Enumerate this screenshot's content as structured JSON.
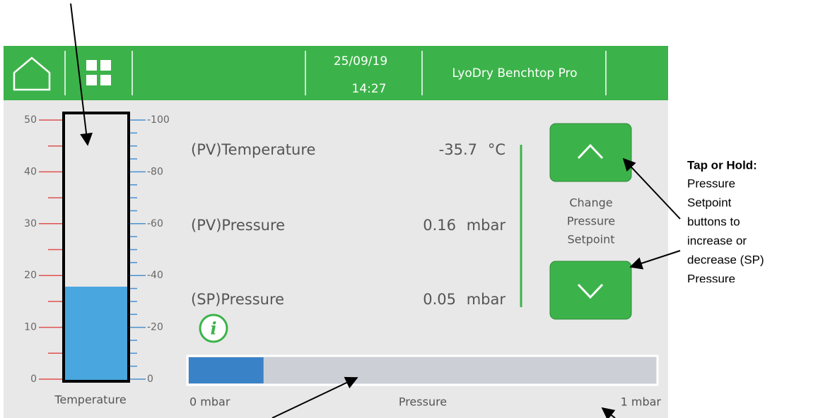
{
  "header": {
    "date": "25/09/19",
    "time": "14:27",
    "title": "LyoDry Benchtop Pro"
  },
  "thermometer": {
    "label": "Temperature",
    "left_range": [
      0,
      50
    ],
    "left_ticks": [
      0,
      10,
      20,
      30,
      40,
      50
    ],
    "right_range": [
      0,
      -100
    ],
    "right_ticks": [
      0,
      -20,
      -40,
      -60,
      -80,
      -100
    ]
  },
  "readings": [
    {
      "label": "(PV)Temperature",
      "value": -35.7,
      "unit": "°C"
    },
    {
      "label": "(PV)Pressure",
      "value": 0.16,
      "unit": "mbar"
    },
    {
      "label": "(SP)Pressure",
      "value": 0.05,
      "unit": "mbar"
    }
  ],
  "setpoint_buttons": {
    "label_lines": [
      "Change",
      "Pressure",
      "Setpoint"
    ]
  },
  "pressure_bar": {
    "label": "Pressure",
    "range": [
      0,
      1
    ],
    "min_label": "0 mbar",
    "max_label": "1 mbar"
  },
  "annotation": {
    "bold": "Tap or Hold:",
    "lines": [
      "Pressure",
      "Setpoint",
      "buttons to",
      "increase or",
      "decrease (SP)",
      "Pressure"
    ]
  }
}
